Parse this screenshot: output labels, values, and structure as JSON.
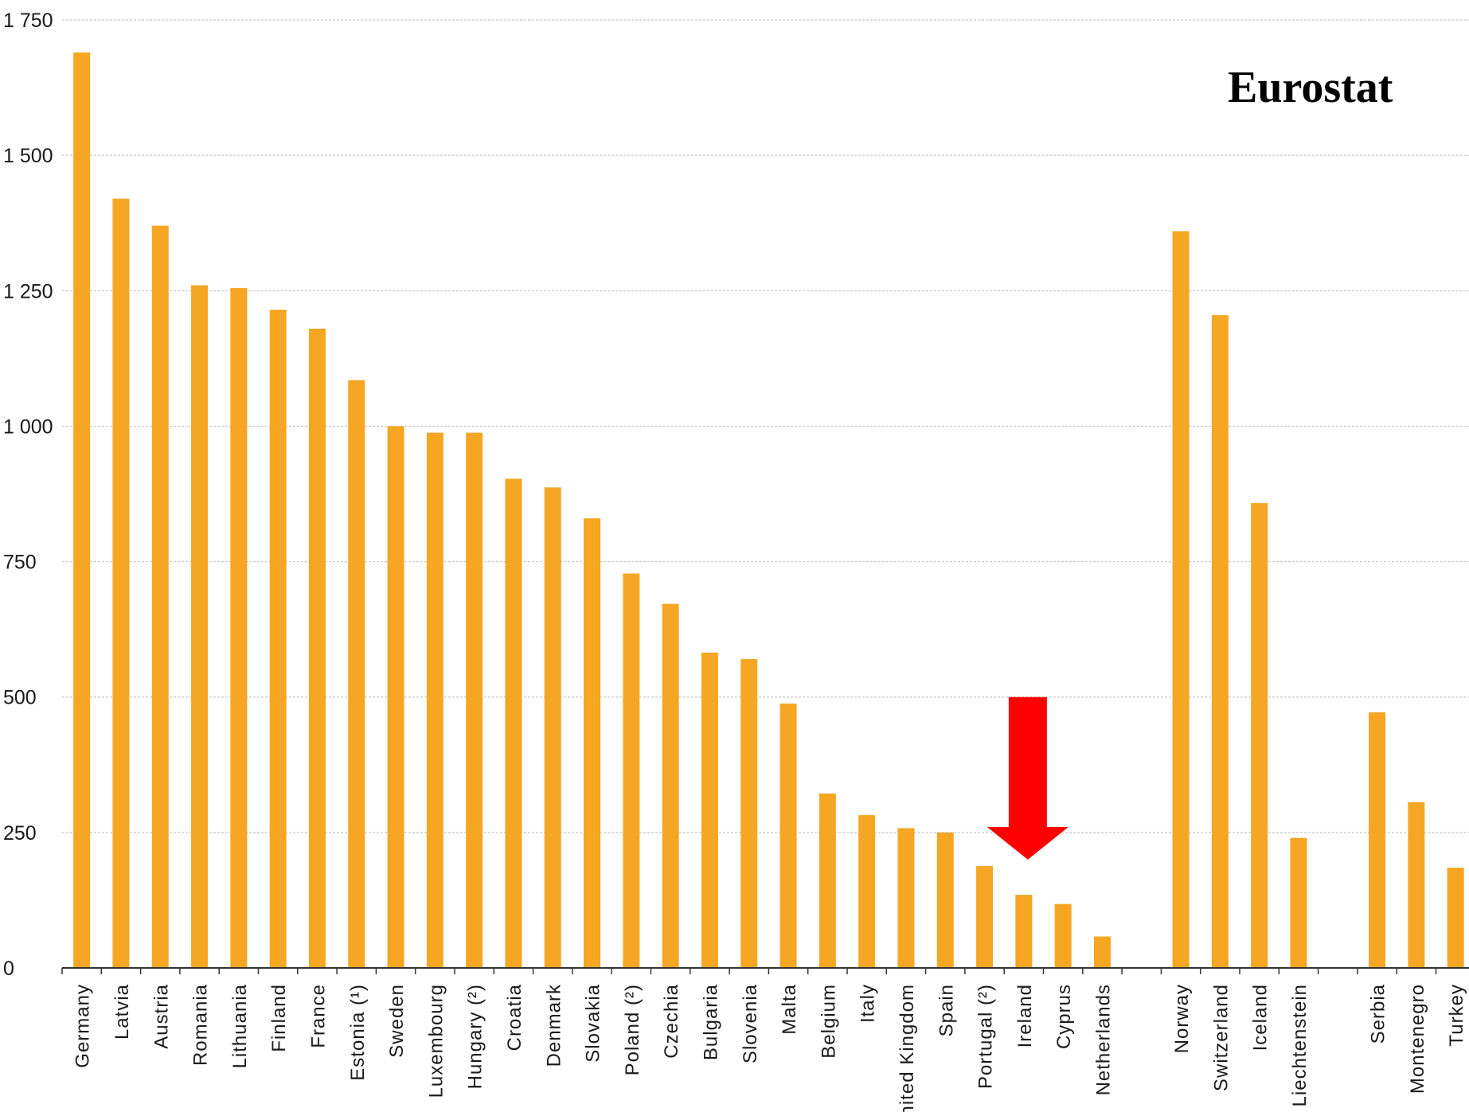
{
  "source_label": "Eurostat",
  "colors": {
    "bar": "#f5a623",
    "grid": "#c8c8c8",
    "axis": "#333333",
    "arrow": "#ff0000"
  },
  "chart_data": {
    "type": "bar",
    "title": "",
    "xlabel": "",
    "ylabel": "",
    "ylim": [
      0,
      1750
    ],
    "yticks": [
      0,
      250,
      500,
      750,
      1000,
      1250,
      1500,
      1750
    ],
    "ytick_labels": [
      "0",
      "250",
      "500",
      "750",
      "1 000",
      "1 250",
      "1 500",
      "1 750"
    ],
    "grid": true,
    "categories": [
      "Germany",
      "Latvia",
      "Austria",
      "Romania",
      "Lithuania",
      "Finland",
      "France",
      "Estonia (¹)",
      "Sweden",
      "Luxembourg",
      "Hungary (²)",
      "Croatia",
      "Denmark",
      "Slovakia",
      "Poland (²)",
      "Czechia",
      "Bulgaria",
      "Slovenia",
      "Malta",
      "Belgium",
      "Italy",
      "United Kingdom",
      "Spain",
      "Portugal (²)",
      "Ireland",
      "Cyprus",
      "Netherlands",
      "",
      "Norway",
      "Switzerland",
      "Iceland",
      "Liechtenstein",
      "",
      "Serbia",
      "Montenegro",
      "Turkey"
    ],
    "values": [
      1690,
      1420,
      1370,
      1260,
      1255,
      1215,
      1180,
      1085,
      1000,
      988,
      988,
      903,
      887,
      830,
      728,
      672,
      582,
      570,
      488,
      322,
      282,
      258,
      250,
      188,
      135,
      118,
      58,
      null,
      1360,
      1205,
      858,
      240,
      null,
      472,
      306,
      185
    ],
    "annotation": {
      "type": "arrow",
      "points_to": "Ireland",
      "from_value": 500,
      "to_value": 200
    }
  }
}
